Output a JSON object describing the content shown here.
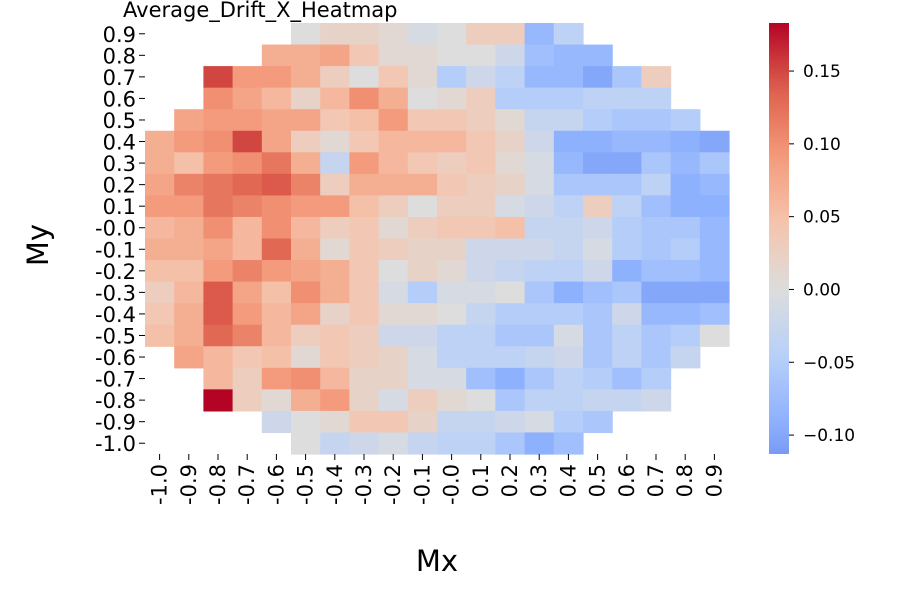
{
  "chart_data": {
    "type": "heatmap",
    "title": "Average_Drift_X_Heatmap",
    "xlabel": "Mx",
    "ylabel": "My",
    "x_ticks": [
      "-1.0",
      "-0.9",
      "-0.8",
      "-0.7",
      "-0.6",
      "-0.5",
      "-0.4",
      "-0.3",
      "-0.2",
      "-0.1",
      "-0.0",
      "0.1",
      "0.2",
      "0.3",
      "0.4",
      "0.5",
      "0.6",
      "0.7",
      "0.8",
      "0.9"
    ],
    "y_ticks": [
      "0.9",
      "0.8",
      "0.7",
      "0.6",
      "0.5",
      "0.4",
      "0.3",
      "0.2",
      "0.1",
      "-0.0",
      "-0.1",
      "-0.2",
      "-0.3",
      "-0.4",
      "-0.5",
      "-0.6",
      "-0.7",
      "-0.8",
      "-0.9",
      "-1.0"
    ],
    "colormap": "coolwarm",
    "vmin": -0.113,
    "vmax": 0.183,
    "colorbar_ticks": [
      "0.15",
      "0.10",
      "0.05",
      "0.00",
      "−0.05",
      "−0.10"
    ],
    "colorbar_tick_values": [
      0.15,
      0.1,
      0.05,
      0.0,
      -0.05,
      -0.1
    ],
    "values": [
      [
        null,
        null,
        null,
        null,
        null,
        0.0,
        0.02,
        0.02,
        0.01,
        -0.01,
        0.0,
        0.03,
        0.03,
        -0.08,
        -0.04,
        null,
        null,
        null,
        null,
        null
      ],
      [
        null,
        null,
        null,
        null,
        0.07,
        0.07,
        0.08,
        0.04,
        0.01,
        0.01,
        0.0,
        0.0,
        -0.02,
        -0.07,
        -0.08,
        -0.08,
        null,
        null,
        null,
        null
      ],
      [
        null,
        null,
        0.15,
        0.09,
        0.09,
        0.07,
        0.03,
        0.0,
        0.04,
        0.01,
        -0.05,
        -0.02,
        -0.04,
        -0.08,
        -0.08,
        -0.1,
        -0.06,
        0.03,
        null,
        null
      ],
      [
        null,
        null,
        0.1,
        0.08,
        0.06,
        0.02,
        0.06,
        0.1,
        0.07,
        0.0,
        0.01,
        0.03,
        -0.05,
        -0.05,
        -0.05,
        -0.04,
        -0.04,
        -0.04,
        null,
        null
      ],
      [
        null,
        0.08,
        0.09,
        0.09,
        0.08,
        0.08,
        0.04,
        0.05,
        0.09,
        0.04,
        0.04,
        0.03,
        0.01,
        -0.03,
        -0.03,
        -0.05,
        -0.06,
        -0.06,
        -0.05,
        null
      ],
      [
        0.07,
        0.09,
        0.1,
        0.15,
        0.08,
        0.03,
        0.01,
        0.04,
        0.06,
        0.06,
        0.06,
        0.04,
        0.02,
        -0.02,
        -0.09,
        -0.09,
        -0.08,
        -0.08,
        -0.09,
        -0.1
      ],
      [
        0.07,
        0.05,
        0.09,
        0.1,
        0.12,
        0.07,
        -0.03,
        0.09,
        0.06,
        0.04,
        0.03,
        0.04,
        0.01,
        -0.01,
        -0.08,
        -0.1,
        -0.1,
        -0.06,
        -0.08,
        -0.06
      ],
      [
        0.08,
        0.11,
        0.12,
        0.13,
        0.14,
        0.11,
        0.03,
        0.07,
        0.07,
        0.07,
        0.04,
        0.03,
        0.02,
        -0.01,
        -0.06,
        -0.06,
        -0.06,
        -0.04,
        -0.09,
        -0.08
      ],
      [
        0.09,
        0.09,
        0.12,
        0.11,
        0.1,
        0.09,
        0.09,
        0.05,
        0.03,
        0.0,
        0.03,
        0.03,
        -0.01,
        -0.02,
        -0.04,
        0.03,
        -0.04,
        -0.07,
        -0.09,
        -0.09
      ],
      [
        0.06,
        0.07,
        0.1,
        0.06,
        0.1,
        0.06,
        0.03,
        0.04,
        0.01,
        0.03,
        0.04,
        0.04,
        0.05,
        -0.03,
        -0.03,
        -0.02,
        -0.05,
        -0.06,
        -0.06,
        -0.08
      ],
      [
        0.07,
        0.07,
        0.08,
        0.06,
        0.13,
        0.07,
        0.01,
        0.04,
        0.03,
        0.02,
        0.02,
        -0.02,
        -0.02,
        -0.02,
        -0.03,
        -0.01,
        -0.05,
        -0.06,
        -0.05,
        -0.08
      ],
      [
        0.05,
        0.05,
        0.09,
        0.11,
        0.09,
        0.08,
        0.07,
        0.04,
        0.0,
        0.02,
        0.01,
        -0.02,
        -0.03,
        -0.04,
        -0.04,
        -0.02,
        -0.09,
        -0.07,
        -0.07,
        -0.08
      ],
      [
        0.03,
        0.06,
        0.14,
        0.08,
        0.05,
        0.1,
        0.07,
        0.04,
        -0.01,
        -0.05,
        -0.01,
        -0.01,
        0.0,
        -0.06,
        -0.09,
        -0.07,
        -0.06,
        -0.1,
        -0.1,
        -0.1
      ],
      [
        0.04,
        0.07,
        0.14,
        0.09,
        0.06,
        0.08,
        0.02,
        0.04,
        0.01,
        0.01,
        0.0,
        -0.03,
        -0.05,
        -0.05,
        -0.05,
        -0.06,
        -0.02,
        -0.08,
        -0.08,
        -0.07
      ],
      [
        0.05,
        0.07,
        0.13,
        0.11,
        0.06,
        0.03,
        0.04,
        0.03,
        -0.02,
        -0.02,
        -0.04,
        -0.04,
        -0.06,
        -0.06,
        -0.01,
        -0.06,
        -0.04,
        -0.06,
        -0.05,
        0.0
      ],
      [
        null,
        0.08,
        0.06,
        0.04,
        0.05,
        0.01,
        0.04,
        0.03,
        0.02,
        -0.01,
        -0.04,
        -0.04,
        -0.04,
        -0.03,
        -0.02,
        -0.06,
        -0.04,
        -0.06,
        -0.03,
        null
      ],
      [
        null,
        null,
        0.06,
        0.03,
        0.09,
        0.1,
        0.06,
        0.02,
        0.02,
        -0.01,
        -0.01,
        -0.07,
        -0.09,
        -0.06,
        -0.04,
        -0.05,
        -0.07,
        -0.05,
        null,
        null
      ],
      [
        null,
        null,
        0.183,
        0.03,
        0.01,
        0.07,
        0.09,
        0.02,
        -0.01,
        0.03,
        0.01,
        0.0,
        -0.06,
        -0.04,
        -0.04,
        -0.03,
        -0.03,
        -0.02,
        null,
        null
      ],
      [
        null,
        null,
        null,
        null,
        -0.02,
        0.0,
        0.01,
        0.04,
        0.04,
        0.02,
        -0.03,
        -0.03,
        -0.02,
        -0.01,
        -0.05,
        -0.06,
        null,
        null,
        null,
        null
      ],
      [
        null,
        null,
        null,
        null,
        null,
        0.0,
        -0.03,
        -0.02,
        -0.01,
        -0.03,
        -0.04,
        -0.04,
        -0.06,
        -0.09,
        -0.07,
        null,
        null,
        null,
        null,
        null
      ]
    ]
  }
}
